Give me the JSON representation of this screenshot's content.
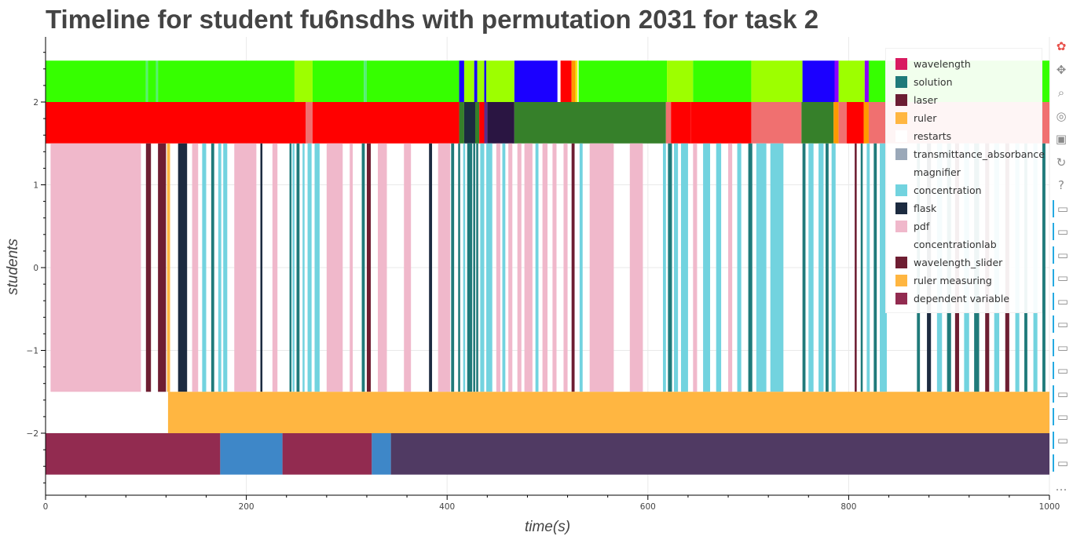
{
  "title": "Timeline for student fu6nsdhs with permutation 2031 for task 2",
  "chart_data": {
    "type": "timeline",
    "xlabel": "time(s)",
    "ylabel": "students",
    "xlim": [
      0,
      1000
    ],
    "ylim": [
      -2.7,
      2.75
    ],
    "x_ticks": [
      0,
      200,
      400,
      600,
      800,
      1000
    ],
    "y_ticks": [
      -2,
      -1,
      0,
      1,
      2
    ],
    "y_tick_labels": [
      "−2",
      "−1",
      "0",
      "1",
      "2"
    ],
    "grid": true,
    "legend_position": "top-right",
    "legend": [
      {
        "label": "wavelength",
        "color": "#d81b60"
      },
      {
        "label": "solution",
        "color": "#1f7a7a"
      },
      {
        "label": "laser",
        "color": "#6b1d33"
      },
      {
        "label": "ruler",
        "color": "#ffb641"
      },
      {
        "label": "restarts",
        "color": "#ffffff"
      },
      {
        "label": "transmittance_absorbance",
        "color": "#9aa8b8"
      },
      {
        "label": "magnifier",
        "color": "#ffffff"
      },
      {
        "label": "concentration",
        "color": "#72d3df"
      },
      {
        "label": "flask",
        "color": "#1c2b40"
      },
      {
        "label": "pdf",
        "color": "#f0b8cb"
      },
      {
        "label": "concentrationlab",
        "color": "#ffffff"
      },
      {
        "label": "wavelength_slider",
        "color": "#6e1e32"
      },
      {
        "label": "ruler measuring",
        "color": "#ffb641"
      },
      {
        "label": "dependent variable",
        "color": "#922b50"
      }
    ],
    "rows": [
      {
        "y0": 2.0,
        "y1": 2.5,
        "segments": [
          [
            0,
            100,
            "#36ff00"
          ],
          [
            100,
            102,
            "#55f075"
          ],
          [
            102,
            110,
            "#36ff00"
          ],
          [
            110,
            112,
            "#55f075"
          ],
          [
            112,
            248,
            "#36ff00"
          ],
          [
            248,
            266,
            "#9dff00"
          ],
          [
            266,
            317,
            "#36ff00"
          ],
          [
            317,
            320,
            "#55f075"
          ],
          [
            320,
            412,
            "#36ff00"
          ],
          [
            412,
            417,
            "#1b00ff"
          ],
          [
            417,
            427,
            "#9dff00"
          ],
          [
            427,
            430,
            "#1b00ff"
          ],
          [
            430,
            437,
            "#9dff00"
          ],
          [
            437,
            439,
            "#1b00ff"
          ],
          [
            439,
            467,
            "#9dff00"
          ],
          [
            467,
            510,
            "#1b00ff"
          ],
          [
            510,
            513,
            "#ffffff"
          ],
          [
            513,
            524,
            "#ff0000"
          ],
          [
            524,
            528,
            "#ff9900"
          ],
          [
            528,
            530,
            "#eef000"
          ],
          [
            530,
            531,
            "#ffffff"
          ],
          [
            531,
            619,
            "#36ff00"
          ],
          [
            619,
            645,
            "#9dff00"
          ],
          [
            645,
            703,
            "#36ff00"
          ],
          [
            703,
            754,
            "#9dff00"
          ],
          [
            754,
            786,
            "#1b00ff"
          ],
          [
            786,
            790,
            "#8b00ff"
          ],
          [
            790,
            816,
            "#9dff00"
          ],
          [
            816,
            820,
            "#8b00ff"
          ],
          [
            820,
            1000,
            "#36ff00"
          ]
        ]
      },
      {
        "y0": 1.5,
        "y1": 2.0,
        "segments": [
          [
            0,
            259,
            "#ff0000"
          ],
          [
            259,
            266,
            "#f07070"
          ],
          [
            266,
            412,
            "#ff0000"
          ],
          [
            412,
            417,
            "#36802a"
          ],
          [
            417,
            428,
            "#1c2b40"
          ],
          [
            428,
            432,
            "#36802a"
          ],
          [
            432,
            437,
            "#ff0000"
          ],
          [
            437,
            440,
            "#5b2c8c"
          ],
          [
            440,
            467,
            "#2a1542"
          ],
          [
            467,
            618,
            "#36802a"
          ],
          [
            618,
            623,
            "#f07070"
          ],
          [
            623,
            643,
            "#ff0000"
          ],
          [
            643,
            703,
            "#ff0000"
          ],
          [
            703,
            753,
            "#f07070"
          ],
          [
            753,
            785,
            "#36802a"
          ],
          [
            785,
            790,
            "#ff9900"
          ],
          [
            790,
            798,
            "#f07070"
          ],
          [
            798,
            815,
            "#ff0000"
          ],
          [
            815,
            820,
            "#ff9900"
          ],
          [
            820,
            1000,
            "#f07070"
          ]
        ]
      },
      {
        "y0": -1.5,
        "y1": 1.5,
        "segments": [
          [
            5,
            95,
            "#f0b8cb"
          ],
          [
            100,
            105,
            "#6e1e32"
          ],
          [
            112,
            120,
            "#6e1e32"
          ],
          [
            121,
            124,
            "#ffb641"
          ],
          [
            132,
            141,
            "#1c2b40"
          ],
          [
            146,
            152,
            "#f0b8cb"
          ],
          [
            156,
            160,
            "#72d3df"
          ],
          [
            165,
            168,
            "#1f7a7a"
          ],
          [
            172,
            175,
            "#72d3df"
          ],
          [
            177,
            181,
            "#72d3df"
          ],
          [
            188,
            210,
            "#f0b8cb"
          ],
          [
            214,
            216,
            "#1c2b40"
          ],
          [
            226,
            231,
            "#f0b8cb"
          ],
          [
            243,
            245,
            "#1f7a7a"
          ],
          [
            246,
            248,
            "#72d3df"
          ],
          [
            250,
            253,
            "#1f7a7a"
          ],
          [
            256,
            258,
            "#72d3df"
          ],
          [
            261,
            265,
            "#72d3df"
          ],
          [
            268,
            273,
            "#72d3df"
          ],
          [
            280,
            296,
            "#f0b8cb"
          ],
          [
            303,
            306,
            "#f0b8cb"
          ],
          [
            315,
            318,
            "#1f7a7a"
          ],
          [
            320,
            324,
            "#6e1e32"
          ],
          [
            331,
            340,
            "#f0b8cb"
          ],
          [
            357,
            364,
            "#f0b8cb"
          ],
          [
            382,
            385,
            "#1c2b40"
          ],
          [
            391,
            403,
            "#f0b8cb"
          ],
          [
            404,
            407,
            "#1f7a7a"
          ],
          [
            411,
            413,
            "#1f7a7a"
          ],
          [
            416,
            418,
            "#72d3df"
          ],
          [
            420,
            425,
            "#1f7a7a"
          ],
          [
            426,
            428,
            "#1f7a7a"
          ],
          [
            429,
            431,
            "#1f7a7a"
          ],
          [
            433,
            437,
            "#72d3df"
          ],
          [
            439,
            445,
            "#72d3df"
          ],
          [
            449,
            453,
            "#f0b8cb"
          ],
          [
            455,
            458,
            "#72d3df"
          ],
          [
            461,
            465,
            "#f0b8cb"
          ],
          [
            470,
            474,
            "#f0b8cb"
          ],
          [
            477,
            485,
            "#f0b8cb"
          ],
          [
            488,
            491,
            "#72d3df"
          ],
          [
            495,
            500,
            "#f0b8cb"
          ],
          [
            505,
            509,
            "#f0b8cb"
          ],
          [
            516,
            520,
            "#f0b8cb"
          ],
          [
            524,
            527,
            "#6e1e32"
          ],
          [
            532,
            535,
            "#72d3df"
          ],
          [
            542,
            566,
            "#f0b8cb"
          ],
          [
            582,
            595,
            "#f0b8cb"
          ],
          [
            615,
            618,
            "#72d3df"
          ],
          [
            620,
            624,
            "#1f7a7a"
          ],
          [
            626,
            630,
            "#72d3df"
          ],
          [
            633,
            640,
            "#72d3df"
          ],
          [
            645,
            649,
            "#f0b8cb"
          ],
          [
            655,
            662,
            "#72d3df"
          ],
          [
            668,
            673,
            "#72d3df"
          ],
          [
            680,
            684,
            "#f0b8cb"
          ],
          [
            689,
            693,
            "#72d3df"
          ],
          [
            700,
            704,
            "#1f7a7a"
          ],
          [
            708,
            718,
            "#72d3df"
          ],
          [
            722,
            735,
            "#72d3df"
          ],
          [
            754,
            757,
            "#1f7a7a"
          ],
          [
            760,
            765,
            "#72d3df"
          ],
          [
            770,
            775,
            "#72d3df"
          ],
          [
            777,
            780,
            "#1f7a7a"
          ],
          [
            783,
            787,
            "#72d3df"
          ],
          [
            806,
            808,
            "#6e1e32"
          ],
          [
            812,
            814,
            "#1f7a7a"
          ],
          [
            818,
            821,
            "#72d3df"
          ],
          [
            825,
            828,
            "#1f7a7a"
          ],
          [
            831,
            838,
            "#72d3df"
          ],
          [
            868,
            871,
            "#1f7a7a"
          ],
          [
            878,
            882,
            "#1c2b40"
          ],
          [
            888,
            893,
            "#72d3df"
          ],
          [
            898,
            902,
            "#1f7a7a"
          ],
          [
            906,
            910,
            "#6e1e32"
          ],
          [
            915,
            920,
            "#72d3df"
          ],
          [
            925,
            930,
            "#1f7a7a"
          ],
          [
            936,
            940,
            "#6e1e32"
          ],
          [
            945,
            950,
            "#72d3df"
          ],
          [
            956,
            960,
            "#6e1e32"
          ],
          [
            966,
            970,
            "#72d3df"
          ],
          [
            975,
            978,
            "#1f7a7a"
          ],
          [
            984,
            988,
            "#72d3df"
          ],
          [
            993,
            996,
            "#1f7a7a"
          ]
        ]
      },
      {
        "y0": -2.0,
        "y1": -1.5,
        "segments": [
          [
            122,
            1000,
            "#ffb641"
          ]
        ]
      },
      {
        "y0": -2.5,
        "y1": -2.0,
        "segments": [
          [
            0,
            174,
            "#922b50"
          ],
          [
            174,
            236,
            "#3e87c8"
          ],
          [
            236,
            325,
            "#922b50"
          ],
          [
            325,
            344,
            "#3e87c8"
          ],
          [
            344,
            1000,
            "#503a63"
          ]
        ]
      }
    ]
  },
  "toolbar": {
    "tools": [
      {
        "name": "bokeh-logo-icon",
        "glyph": "✿",
        "color": "#e8504a"
      },
      {
        "name": "pan-icon",
        "glyph": "✥",
        "color": "#8a8a8a"
      },
      {
        "name": "box-zoom-icon",
        "glyph": "⌕",
        "color": "#8a8a8a"
      },
      {
        "name": "wheel-zoom-icon",
        "glyph": "◎",
        "color": "#8a8a8a"
      },
      {
        "name": "save-icon",
        "glyph": "▣",
        "color": "#8a8a8a"
      },
      {
        "name": "reset-icon",
        "glyph": "↻",
        "color": "#8a8a8a"
      },
      {
        "name": "help-icon",
        "glyph": "?",
        "color": "#8a8a8a"
      },
      {
        "name": "hover-icon",
        "glyph": "▭",
        "color": "#8a8a8a"
      },
      {
        "name": "hover-icon",
        "glyph": "▭",
        "color": "#8a8a8a"
      },
      {
        "name": "hover-icon",
        "glyph": "▭",
        "color": "#8a8a8a"
      },
      {
        "name": "hover-icon",
        "glyph": "▭",
        "color": "#8a8a8a"
      },
      {
        "name": "hover-icon",
        "glyph": "▭",
        "color": "#8a8a8a"
      },
      {
        "name": "hover-icon",
        "glyph": "▭",
        "color": "#8a8a8a"
      },
      {
        "name": "hover-icon",
        "glyph": "▭",
        "color": "#8a8a8a"
      },
      {
        "name": "hover-icon",
        "glyph": "▭",
        "color": "#8a8a8a"
      },
      {
        "name": "hover-icon",
        "glyph": "▭",
        "color": "#8a8a8a"
      },
      {
        "name": "hover-icon",
        "glyph": "▭",
        "color": "#8a8a8a"
      },
      {
        "name": "hover-icon",
        "glyph": "▭",
        "color": "#8a8a8a"
      },
      {
        "name": "hover-icon",
        "glyph": "▭",
        "color": "#8a8a8a"
      },
      {
        "name": "more-icon",
        "glyph": "…",
        "color": "#8a8a8a"
      }
    ]
  }
}
